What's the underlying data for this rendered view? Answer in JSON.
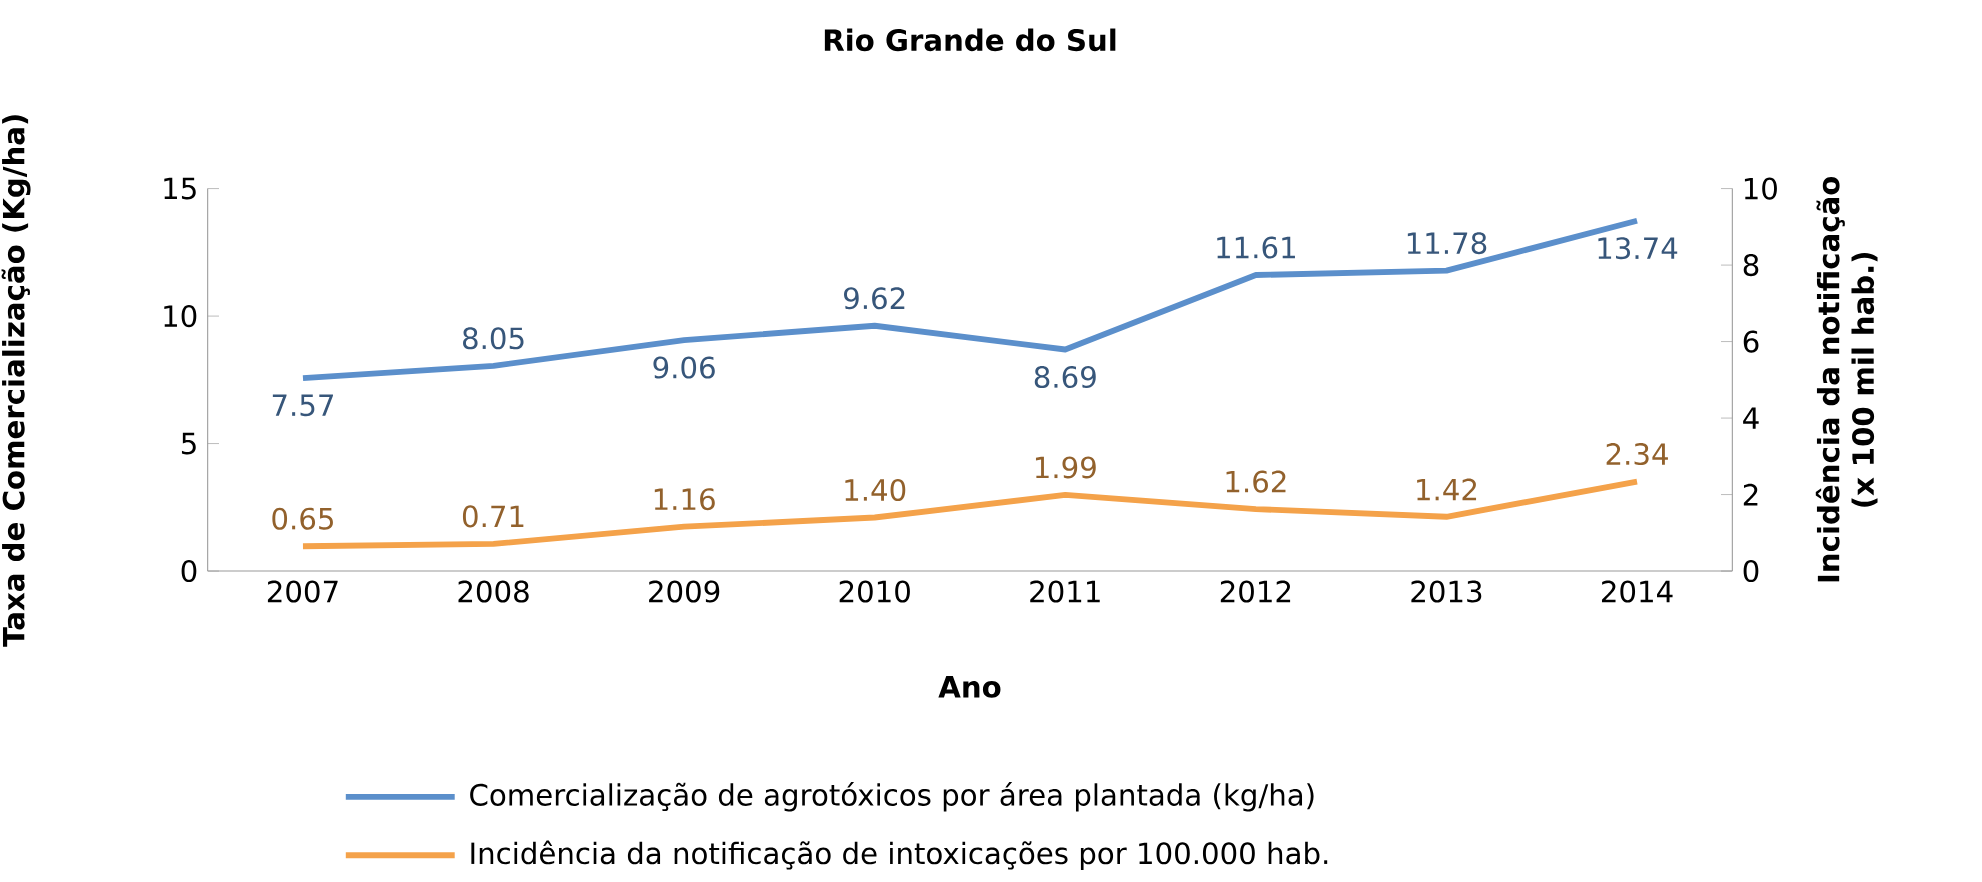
{
  "chart_data": {
    "type": "line",
    "title": "Rio Grande do Sul",
    "xlabel": "Ano",
    "ylabel": "Taxa de Comercialização (Kg/ha)",
    "y2label": "Incidência da notificação (x 100 mil hab.)",
    "categories": [
      "2007",
      "2008",
      "2009",
      "2010",
      "2011",
      "2012",
      "2013",
      "2014"
    ],
    "series": [
      {
        "name": "Comercialização de agrotóxicos por área plantada (kg/ha)",
        "color": "#5b8fcb",
        "values": [
          7.57,
          8.05,
          9.06,
          9.62,
          8.69,
          11.61,
          11.78,
          13.74
        ],
        "value_labels": [
          "7.57",
          "8.05",
          "9.06",
          "9.62",
          "8.69",
          "11.61",
          "11.78",
          "13.74"
        ]
      },
      {
        "name": "Incidência da notificação de intoxicações por 100.000 hab.",
        "color": "#f4a24a",
        "axis": "y2",
        "values": [
          0.65,
          0.71,
          1.16,
          1.4,
          1.99,
          1.62,
          1.42,
          2.34
        ],
        "value_labels": [
          "0.65",
          "0.71",
          "1.16",
          "1.40",
          "1.99",
          "1.62",
          "1.42",
          "2.34"
        ]
      }
    ],
    "ylim": [
      0,
      15
    ],
    "yticks": [
      0,
      5,
      10,
      15
    ],
    "y2lim": [
      0,
      10
    ],
    "y2ticks": [
      0,
      2,
      4,
      6,
      8,
      10
    ],
    "grid": false,
    "legend": "bottom",
    "marker": "none",
    "line_style": "solid"
  }
}
